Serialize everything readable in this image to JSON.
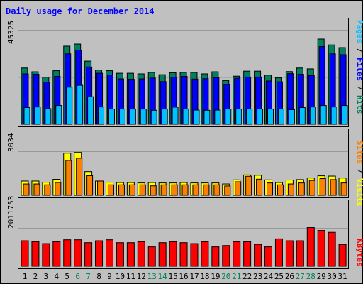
{
  "colors": {
    "background": "#C0C0C0",
    "panel": "#C0C0C0",
    "grid": "#999999",
    "title": "#0000FF",
    "hits": "#00805C",
    "files": "#0000FF",
    "pages": "#00C0FF",
    "visits": "#FFFF00",
    "sites": "#FF8000",
    "kbytes": "#FF0000",
    "weekend_day": "#00805C",
    "weekday": "#000000"
  },
  "chart_data": [
    {
      "type": "bar",
      "title": "Daily usage for December 2014",
      "ylabel_max": "45325",
      "ymax": 45325,
      "categories": [
        "1",
        "2",
        "3",
        "4",
        "5",
        "6",
        "7",
        "8",
        "9",
        "10",
        "11",
        "12",
        "13",
        "14",
        "15",
        "16",
        "17",
        "18",
        "19",
        "20",
        "21",
        "22",
        "23",
        "24",
        "25",
        "26",
        "27",
        "28",
        "29",
        "30",
        "31"
      ],
      "weekend_days": [
        "6",
        "7",
        "13",
        "14",
        "20",
        "21",
        "27",
        "28"
      ],
      "legend": [
        "Pages",
        "Files",
        "Hits"
      ],
      "series": [
        {
          "name": "Hits",
          "color": "#00805C",
          "values": [
            27000,
            25200,
            22600,
            25700,
            37500,
            38500,
            30300,
            26000,
            25700,
            24500,
            24500,
            24200,
            24900,
            23800,
            24700,
            24900,
            24900,
            24200,
            25200,
            21000,
            23100,
            25500,
            25500,
            23600,
            22300,
            25300,
            27000,
            26600,
            40900,
            38100,
            36800
          ]
        },
        {
          "name": "Files",
          "color": "#0000FF",
          "values": [
            24200,
            24000,
            20200,
            23000,
            33800,
            35600,
            27500,
            24500,
            23700,
            21800,
            21600,
            21800,
            22200,
            20500,
            22600,
            23000,
            21700,
            21900,
            22400,
            19100,
            22100,
            22700,
            22700,
            20800,
            20400,
            24300,
            24000,
            23400,
            37300,
            33800,
            33400
          ]
        },
        {
          "name": "Pages",
          "color": "#00C0FF",
          "values": [
            8000,
            8300,
            7500,
            9000,
            17800,
            18700,
            13200,
            8300,
            7300,
            7300,
            7300,
            7300,
            6700,
            7300,
            8200,
            7300,
            6800,
            6700,
            6800,
            7300,
            7300,
            7300,
            7300,
            7300,
            7300,
            7000,
            8000,
            8300,
            9000,
            8300,
            9000
          ]
        }
      ]
    },
    {
      "type": "bar",
      "ylabel_max": "3034",
      "ymax": 3034,
      "legend": [
        "Sites",
        "Visits"
      ],
      "series": [
        {
          "name": "Visits",
          "color": "#FFFF00",
          "values": [
            980,
            980,
            900,
            1100,
            2900,
            2950,
            1630,
            980,
            900,
            880,
            880,
            850,
            880,
            850,
            850,
            880,
            850,
            850,
            850,
            780,
            1060,
            1400,
            1380,
            1060,
            880,
            1050,
            1080,
            1190,
            1340,
            1320,
            1190
          ]
        },
        {
          "name": "Sites",
          "color": "#FF8000",
          "values": [
            780,
            780,
            720,
            880,
            2400,
            2550,
            1350,
            980,
            720,
            720,
            720,
            720,
            650,
            720,
            720,
            720,
            720,
            720,
            720,
            640,
            930,
            1310,
            1110,
            850,
            720,
            780,
            850,
            1020,
            1150,
            1080,
            850
          ]
        }
      ]
    },
    {
      "type": "bar",
      "ylabel_max": "2011753",
      "ymax": 2011753,
      "legend": [
        "KBytes"
      ],
      "series": [
        {
          "name": "KBytes",
          "color": "#FF0000",
          "values": [
            1340000,
            1290000,
            1190000,
            1290000,
            1390000,
            1390000,
            1240000,
            1340000,
            1390000,
            1240000,
            1240000,
            1290000,
            1020000,
            1240000,
            1290000,
            1240000,
            1190000,
            1290000,
            1020000,
            1090000,
            1290000,
            1290000,
            1150000,
            1020000,
            1440000,
            1340000,
            1340000,
            2030000,
            1880000,
            1780000,
            1140000
          ]
        }
      ]
    }
  ]
}
